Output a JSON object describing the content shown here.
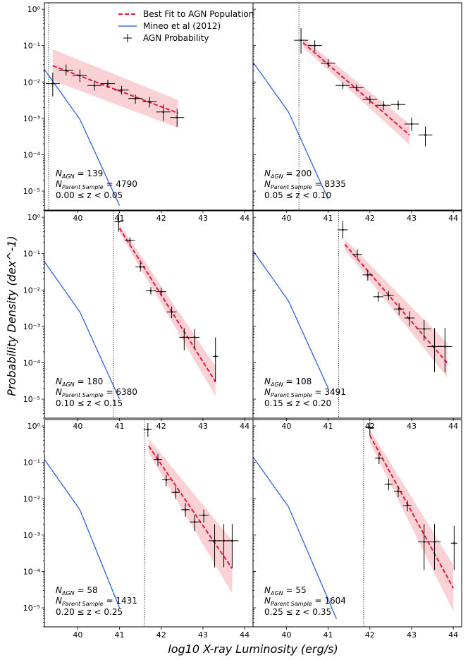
{
  "chart_data": {
    "type": "line",
    "layout": "3x2 grid of panels, shared x and y axes",
    "xlabel": "log10 X-ray Luminosity (erg/s)",
    "ylabel": "Probability Density (dex^-1)",
    "xlim": [
      39.2,
      44.2
    ],
    "ylim": [
      3e-06,
      1.5
    ],
    "yscale": "log",
    "xticks": [
      40,
      41,
      42,
      43,
      44
    ],
    "yticks": [
      1e-05,
      0.0001,
      0.001,
      0.01,
      0.1,
      1
    ],
    "xtick_labels": [
      "40",
      "41",
      "42",
      "43",
      "44"
    ],
    "ytick_labels": [
      "10⁻⁵",
      "10⁻⁴",
      "10⁻³",
      "10⁻²",
      "10⁻¹",
      "10⁰"
    ],
    "legend": {
      "position": "top-center of first panel",
      "entries": [
        {
          "label": "Best Fit to AGN Population",
          "color": "#e8173c",
          "style": "dashed"
        },
        {
          "label": "Mineo et al (2012)",
          "color": "#1f55e0",
          "style": "solid"
        },
        {
          "label": "AGN Probability",
          "color": "#000000",
          "style": "errorbar"
        }
      ]
    },
    "colors": {
      "fit": "#e8173c",
      "band": "#f7b8bf",
      "mineo": "#1f55e0",
      "points": "#000000"
    },
    "panels": [
      {
        "n_agn_text": "139",
        "n_parent_text": "4790",
        "z_low": "0.00",
        "z_high": "0.05",
        "threshold": 39.3,
        "mineo": {
          "x": [
            39.2,
            40.05,
            41.0
          ],
          "y": [
            0.022,
            0.00095,
            4e-06
          ]
        },
        "fit": {
          "x0": 39.4,
          "x1": 42.4,
          "y0": 0.028,
          "y1": 0.0014
        },
        "band": {
          "x": [
            39.4,
            42.4
          ],
          "upper": [
            0.08,
            0.0032
          ],
          "lower": [
            0.011,
            0.00055
          ]
        },
        "points": [
          {
            "x": 39.4,
            "y": 0.009,
            "xerr": 0.17,
            "ylo": 0.004,
            "yhi": 0.018
          },
          {
            "x": 39.72,
            "y": 0.021,
            "xerr": 0.17,
            "ylo": 0.015,
            "yhi": 0.03
          },
          {
            "x": 40.05,
            "y": 0.015,
            "xerr": 0.17,
            "ylo": 0.01,
            "yhi": 0.022
          },
          {
            "x": 40.4,
            "y": 0.008,
            "xerr": 0.17,
            "ylo": 0.0058,
            "yhi": 0.011
          },
          {
            "x": 40.72,
            "y": 0.009,
            "xerr": 0.17,
            "ylo": 0.0068,
            "yhi": 0.0115
          },
          {
            "x": 41.05,
            "y": 0.006,
            "xerr": 0.17,
            "ylo": 0.0045,
            "yhi": 0.0078
          },
          {
            "x": 41.38,
            "y": 0.0035,
            "xerr": 0.17,
            "ylo": 0.0025,
            "yhi": 0.0045
          },
          {
            "x": 41.72,
            "y": 0.0029,
            "xerr": 0.17,
            "ylo": 0.002,
            "yhi": 0.0039
          },
          {
            "x": 42.05,
            "y": 0.0015,
            "xerr": 0.17,
            "ylo": 0.00085,
            "yhi": 0.0024
          },
          {
            "x": 42.38,
            "y": 0.00105,
            "xerr": 0.17,
            "ylo": 0.00058,
            "yhi": 0.0018
          }
        ]
      },
      {
        "n_agn_text": "200",
        "n_parent_text": "8335",
        "z_low": "0.05",
        "z_high": "0.10",
        "threshold": 40.3,
        "mineo": {
          "x": [
            39.2,
            40.05,
            41.0
          ],
          "y": [
            0.035,
            0.0015,
            6e-06
          ]
        },
        "fit": {
          "x0": 40.4,
          "x1": 42.95,
          "y0": 0.12,
          "y1": 0.00035
        },
        "band": {
          "x": [
            40.4,
            42.95
          ],
          "upper": [
            0.16,
            0.0007
          ],
          "lower": [
            0.09,
            0.00019
          ]
        },
        "points": [
          {
            "x": 40.35,
            "y": 0.14,
            "xerr": 0.17,
            "ylo": 0.06,
            "yhi": 0.3
          },
          {
            "x": 40.68,
            "y": 0.1,
            "xerr": 0.17,
            "ylo": 0.07,
            "yhi": 0.14
          },
          {
            "x": 41.0,
            "y": 0.033,
            "xerr": 0.17,
            "ylo": 0.025,
            "yhi": 0.042
          },
          {
            "x": 41.35,
            "y": 0.008,
            "xerr": 0.17,
            "ylo": 0.0065,
            "yhi": 0.0098
          },
          {
            "x": 41.68,
            "y": 0.007,
            "xerr": 0.17,
            "ylo": 0.0055,
            "yhi": 0.0085
          },
          {
            "x": 42.0,
            "y": 0.0033,
            "xerr": 0.17,
            "ylo": 0.0025,
            "yhi": 0.0042
          },
          {
            "x": 42.33,
            "y": 0.0023,
            "xerr": 0.17,
            "ylo": 0.0017,
            "yhi": 0.003
          },
          {
            "x": 42.68,
            "y": 0.0024,
            "xerr": 0.17,
            "ylo": 0.0017,
            "yhi": 0.0031
          },
          {
            "x": 43.0,
            "y": 0.0007,
            "xerr": 0.17,
            "ylo": 0.00045,
            "yhi": 0.00105
          },
          {
            "x": 43.33,
            "y": 0.00035,
            "xerr": 0.17,
            "ylo": 0.00017,
            "yhi": 0.0006
          }
        ]
      },
      {
        "n_agn_text": "180",
        "n_parent_text": "6380",
        "z_low": "0.10",
        "z_high": "0.15",
        "threshold": 40.85,
        "mineo": {
          "x": [
            39.2,
            40.05,
            41.0
          ],
          "y": [
            0.06,
            0.0025,
            1e-05
          ]
        },
        "fit": {
          "x0": 41.0,
          "x1": 43.3,
          "y0": 0.5,
          "y1": 3e-05
        },
        "band": {
          "x": [
            41.0,
            43.3
          ],
          "upper": [
            0.65,
            8e-05
          ],
          "lower": [
            0.38,
            1.2e-05
          ]
        },
        "points": [
          {
            "x": 40.98,
            "y": 0.75,
            "xerr": 0.1,
            "ylo": 0.4,
            "yhi": 1.3
          },
          {
            "x": 41.25,
            "y": 0.23,
            "xerr": 0.12,
            "ylo": 0.18,
            "yhi": 0.28
          },
          {
            "x": 41.5,
            "y": 0.043,
            "xerr": 0.12,
            "ylo": 0.032,
            "yhi": 0.056
          },
          {
            "x": 41.75,
            "y": 0.0095,
            "xerr": 0.12,
            "ylo": 0.0075,
            "yhi": 0.012
          },
          {
            "x": 42.0,
            "y": 0.009,
            "xerr": 0.12,
            "ylo": 0.007,
            "yhi": 0.0115
          },
          {
            "x": 42.25,
            "y": 0.0025,
            "xerr": 0.12,
            "ylo": 0.0017,
            "yhi": 0.0035
          },
          {
            "x": 42.55,
            "y": 0.0005,
            "xerr": 0.12,
            "ylo": 0.00022,
            "yhi": 0.0009
          },
          {
            "x": 42.8,
            "y": 0.0005,
            "xerr": 0.12,
            "ylo": 0.00025,
            "yhi": 0.00085
          },
          {
            "x": 43.3,
            "y": 0.00015,
            "xerr": 0.06,
            "ylo": 3e-05,
            "yhi": 0.0005
          }
        ]
      },
      {
        "n_agn_text": "108",
        "n_parent_text": "3491",
        "z_low": "0.15",
        "z_high": "0.20",
        "threshold": 41.25,
        "mineo": {
          "x": [
            39.2,
            40.05,
            41.0
          ],
          "y": [
            0.12,
            0.005,
            2e-05
          ]
        },
        "fit": {
          "x0": 41.4,
          "x1": 43.85,
          "y0": 0.18,
          "y1": 0.0001
        },
        "band": {
          "x": [
            41.4,
            43.85
          ],
          "upper": [
            0.25,
            0.00035
          ],
          "lower": [
            0.13,
            4e-05
          ]
        },
        "points": [
          {
            "x": 41.35,
            "y": 0.45,
            "xerr": 0.12,
            "ylo": 0.26,
            "yhi": 0.8
          },
          {
            "x": 41.7,
            "y": 0.095,
            "xerr": 0.12,
            "ylo": 0.07,
            "yhi": 0.13
          },
          {
            "x": 41.95,
            "y": 0.026,
            "xerr": 0.12,
            "ylo": 0.018,
            "yhi": 0.035
          },
          {
            "x": 42.2,
            "y": 0.0065,
            "xerr": 0.12,
            "ylo": 0.0048,
            "yhi": 0.009
          },
          {
            "x": 42.45,
            "y": 0.007,
            "xerr": 0.12,
            "ylo": 0.0052,
            "yhi": 0.0092
          },
          {
            "x": 42.7,
            "y": 0.003,
            "xerr": 0.12,
            "ylo": 0.002,
            "yhi": 0.0043
          },
          {
            "x": 42.95,
            "y": 0.0017,
            "xerr": 0.12,
            "ylo": 0.001,
            "yhi": 0.0026
          },
          {
            "x": 43.3,
            "y": 0.00085,
            "xerr": 0.17,
            "ylo": 0.0004,
            "yhi": 0.0015
          },
          {
            "x": 43.55,
            "y": 0.00028,
            "xerr": 0.17,
            "ylo": 5.5e-05,
            "yhi": 0.0009
          },
          {
            "x": 43.8,
            "y": 0.00028,
            "xerr": 0.17,
            "ylo": 5.5e-05,
            "yhi": 0.0009
          }
        ]
      },
      {
        "n_agn_text": "58",
        "n_parent_text": "1431",
        "z_low": "0.20",
        "z_high": "0.25",
        "threshold": 41.6,
        "mineo": {
          "x": [
            39.2,
            40.05,
            41.0
          ],
          "y": [
            0.12,
            0.005,
            1e-05
          ]
        },
        "fit": {
          "x0": 41.7,
          "x1": 43.7,
          "y0": 0.28,
          "y1": 0.00012
        },
        "band": {
          "x": [
            41.7,
            43.7
          ],
          "upper": [
            0.45,
            0.0007
          ],
          "lower": [
            0.18,
            2.5e-05
          ]
        },
        "points": [
          {
            "x": 41.68,
            "y": 0.8,
            "xerr": 0.1,
            "ylo": 0.5,
            "yhi": 1.2
          },
          {
            "x": 41.92,
            "y": 0.12,
            "xerr": 0.1,
            "ylo": 0.08,
            "yhi": 0.17
          },
          {
            "x": 42.12,
            "y": 0.033,
            "xerr": 0.1,
            "ylo": 0.022,
            "yhi": 0.045
          },
          {
            "x": 42.35,
            "y": 0.015,
            "xerr": 0.1,
            "ylo": 0.01,
            "yhi": 0.021
          },
          {
            "x": 42.58,
            "y": 0.005,
            "xerr": 0.1,
            "ylo": 0.0032,
            "yhi": 0.0075
          },
          {
            "x": 42.8,
            "y": 0.0023,
            "xerr": 0.12,
            "ylo": 0.0013,
            "yhi": 0.0035
          },
          {
            "x": 43.02,
            "y": 0.0035,
            "xerr": 0.12,
            "ylo": 0.0022,
            "yhi": 0.005
          },
          {
            "x": 43.28,
            "y": 0.0007,
            "xerr": 0.15,
            "ylo": 0.00013,
            "yhi": 0.002
          },
          {
            "x": 43.5,
            "y": 0.0007,
            "xerr": 0.15,
            "ylo": 0.00013,
            "yhi": 0.002
          },
          {
            "x": 43.7,
            "y": 0.0007,
            "xerr": 0.15,
            "ylo": 0.00013,
            "yhi": 0.002
          }
        ]
      },
      {
        "n_agn_text": "55",
        "n_parent_text": "1604",
        "z_low": "0.25",
        "z_high": "0.35",
        "threshold": 41.85,
        "mineo": {
          "x": [
            39.2,
            40.05,
            41.2
          ],
          "y": [
            0.14,
            0.006,
            5e-06
          ]
        },
        "fit": {
          "x0": 42.0,
          "x1": 44.0,
          "y0": 0.55,
          "y1": 3.5e-05
        },
        "band": {
          "x": [
            42.0,
            44.0
          ],
          "upper": [
            0.8,
            0.00015
          ],
          "lower": [
            0.35,
            8e-06
          ]
        },
        "points": [
          {
            "x": 42.0,
            "y": 0.9,
            "xerr": 0.1,
            "ylo": 0.55,
            "yhi": 1.3
          },
          {
            "x": 42.22,
            "y": 0.13,
            "xerr": 0.1,
            "ylo": 0.09,
            "yhi": 0.18
          },
          {
            "x": 42.45,
            "y": 0.025,
            "xerr": 0.1,
            "ylo": 0.017,
            "yhi": 0.035
          },
          {
            "x": 42.68,
            "y": 0.016,
            "xerr": 0.1,
            "ylo": 0.011,
            "yhi": 0.022
          },
          {
            "x": 42.9,
            "y": 0.0065,
            "xerr": 0.1,
            "ylo": 0.0045,
            "yhi": 0.009
          },
          {
            "x": 43.3,
            "y": 0.00065,
            "xerr": 0.15,
            "ylo": 0.00011,
            "yhi": 0.002
          },
          {
            "x": 43.55,
            "y": 0.00065,
            "xerr": 0.15,
            "ylo": 0.00011,
            "yhi": 0.002
          },
          {
            "x": 44.02,
            "y": 0.0006,
            "xerr": 0.08,
            "ylo": 0.00011,
            "yhi": 0.0018
          }
        ]
      }
    ]
  }
}
